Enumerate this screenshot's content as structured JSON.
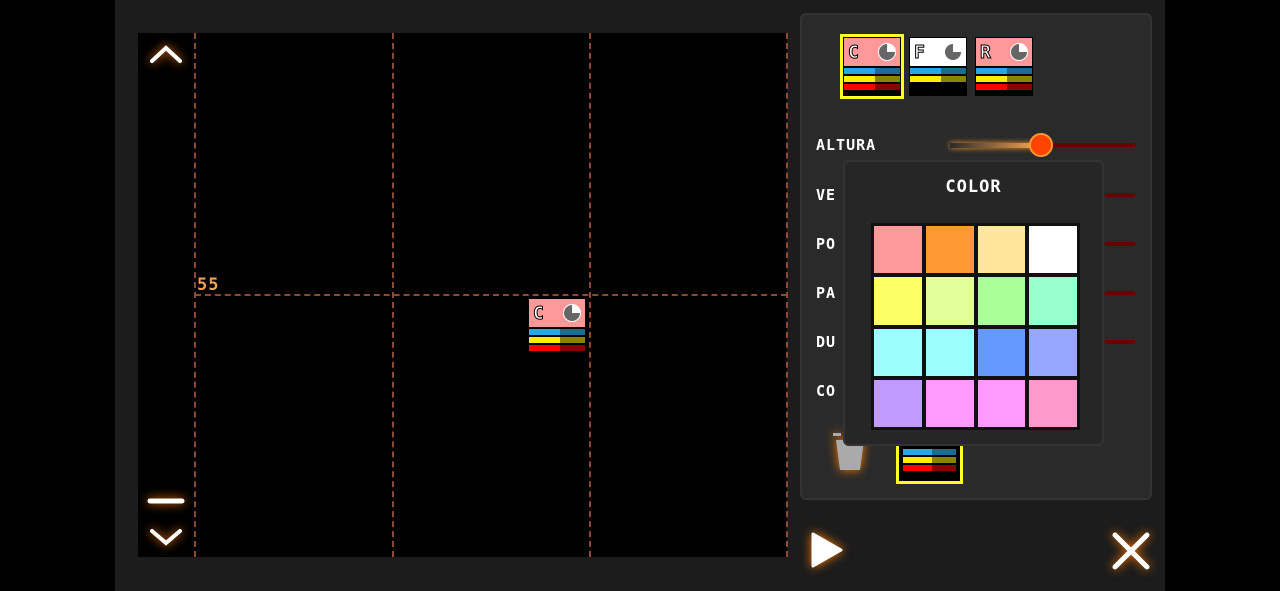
{
  "grid": {
    "row_label": "55"
  },
  "controls": {
    "up_icon": "chevron-up-icon",
    "minus_icon": "minus-icon",
    "down_icon": "chevron-down-icon",
    "play_icon": "play-icon",
    "close_icon": "close-icon",
    "trash_icon": "trash-icon"
  },
  "instruments": [
    {
      "letter": "C",
      "color": "#ff9999",
      "selected": true
    },
    {
      "letter": "F",
      "color": "#ffffff",
      "selected": false
    },
    {
      "letter": "R",
      "color": "#ff9999",
      "selected": false
    }
  ],
  "note_block": {
    "letter": "C",
    "color": "#ff9999"
  },
  "params": [
    {
      "label": "ALTURA",
      "value": 0.49
    },
    {
      "label": "VE"
    },
    {
      "label": "PO"
    },
    {
      "label": "PA"
    },
    {
      "label": "DU"
    },
    {
      "label": "CO"
    }
  ],
  "color_popup": {
    "title": "COLOR",
    "swatches": [
      "#ff9999",
      "#ff9933",
      "#ffe699",
      "#ffffff",
      "#ffff66",
      "#e0ff99",
      "#aaff99",
      "#99ffcc",
      "#99ffff",
      "#99ffff",
      "#6699ff",
      "#99a6ff",
      "#c299ff",
      "#ff99ff",
      "#ff99ff",
      "#ff99cc"
    ]
  },
  "accent": "#ff7a00"
}
